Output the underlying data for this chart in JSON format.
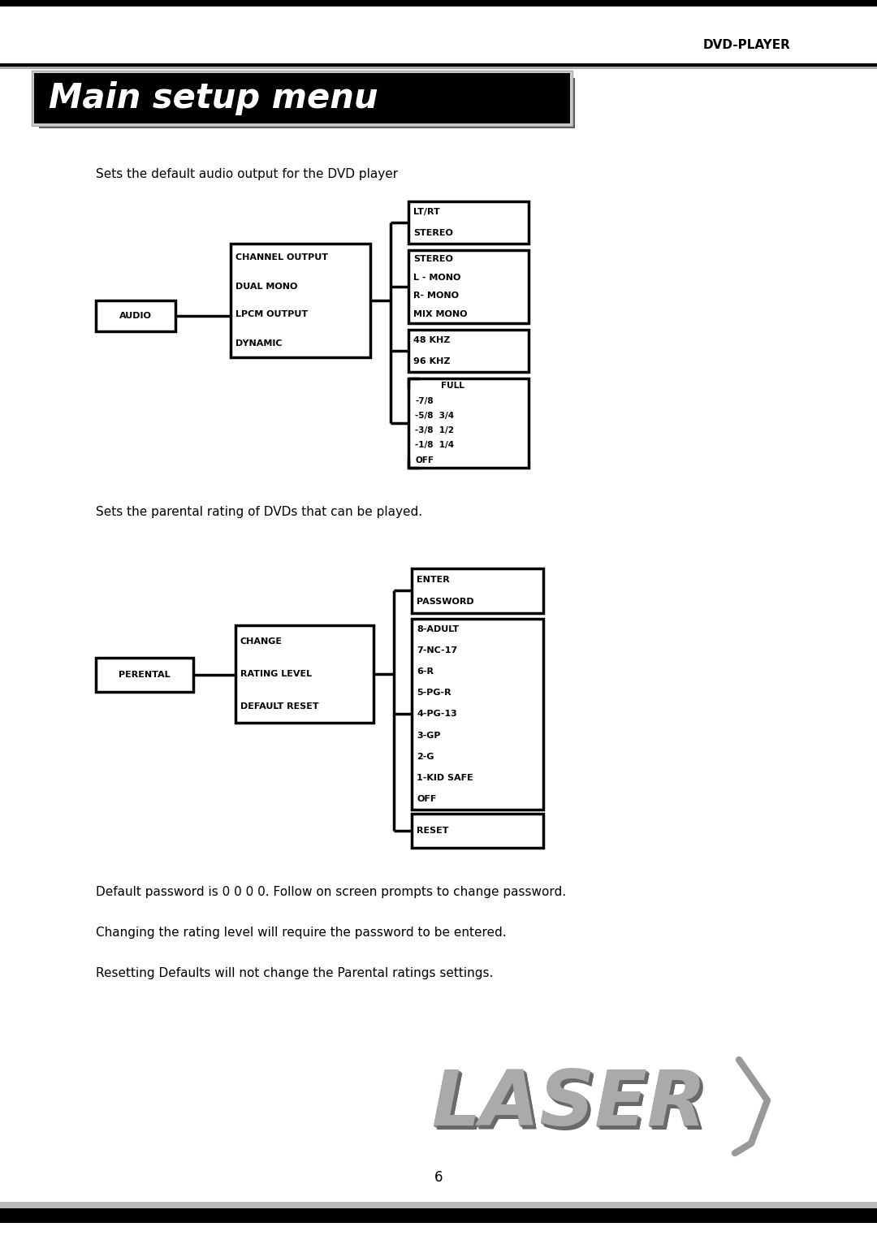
{
  "page_title": "DVD-PLAYER",
  "header_title": "Main setup menu",
  "section1_text": "Sets the default audio output for the DVD player",
  "section2_text": "Sets the parental rating of DVDs that can be played.",
  "footer_texts": [
    "Default password is 0 0 0 0. Follow on screen prompts to change password.",
    "Changing the rating level will require the password to be entered.",
    "Resetting Defaults will not change the Parental ratings settings."
  ],
  "page_number": "6",
  "audio_box_label": "AUDIO",
  "audio_menu_lines": [
    "CHANNEL OUTPUT",
    "DUAL MONO",
    "LPCM OUTPUT",
    "DYNAMIC"
  ],
  "audio_branches_1": [
    "LT/RT",
    "STEREO"
  ],
  "audio_branches_2": [
    "STEREO",
    "L - MONO",
    "R- MONO",
    "MIX MONO"
  ],
  "audio_branches_3": [
    "48 KHZ",
    "96 KHZ"
  ],
  "audio_branches_4": [
    "FULL",
    "-7/8",
    "-5/8  3/4",
    "-3/8  1/2",
    "-1/8  1/4",
    "OFF"
  ],
  "parental_box_label": "PERENTAL",
  "parental_menu_lines": [
    "CHANGE",
    "RATING LEVEL",
    "DEFAULT RESET"
  ],
  "parental_branches_1": [
    "ENTER",
    "PASSWORD"
  ],
  "parental_branches_2": [
    "8-ADULT",
    "7-NC-17",
    "6-R",
    "5-PG-R",
    "4-PG-13",
    "3-GP",
    "2-G",
    "1-KID SAFE",
    "OFF"
  ],
  "parental_branches_3": [
    "RESET"
  ],
  "bg_color": "#ffffff",
  "text_color": "#000000",
  "header_bg": "#000000",
  "header_text_color": "#ffffff",
  "laser_color": "#999999"
}
